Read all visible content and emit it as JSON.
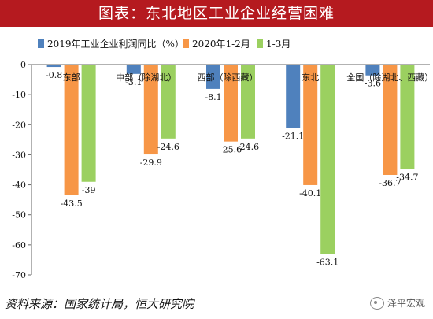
{
  "title": "图表：东北地区工业企业经营困难",
  "source": "资料来源：国家统计局，恒大研究院",
  "watermark": "泽平宏观",
  "colors": {
    "title_bg": "#b51a1f",
    "s1": "#4f81bd",
    "s2": "#f79646",
    "s3": "#9bd060"
  },
  "chart_data": {
    "type": "bar",
    "categories": [
      "东部",
      "中部（除湖北）",
      "西部（除西藏）",
      "东北",
      "全国（除湖北、西藏）"
    ],
    "series": [
      {
        "name": "2019年工业企业利润同比（%）",
        "values": [
          -0.8,
          -3.1,
          -8.1,
          -21.1,
          -3.6
        ]
      },
      {
        "name": "2020年1-2月",
        "values": [
          -43.5,
          -29.9,
          -25.6,
          -40.1,
          -36.7
        ]
      },
      {
        "name": "1-3月",
        "values": [
          -39.0,
          -24.6,
          -24.6,
          -63.1,
          -34.7
        ]
      }
    ],
    "ylim": [
      -70,
      0
    ],
    "yticks": [
      0,
      -10,
      -20,
      -30,
      -40,
      -50,
      -60,
      -70
    ],
    "legend_position": "top",
    "grid": false
  }
}
